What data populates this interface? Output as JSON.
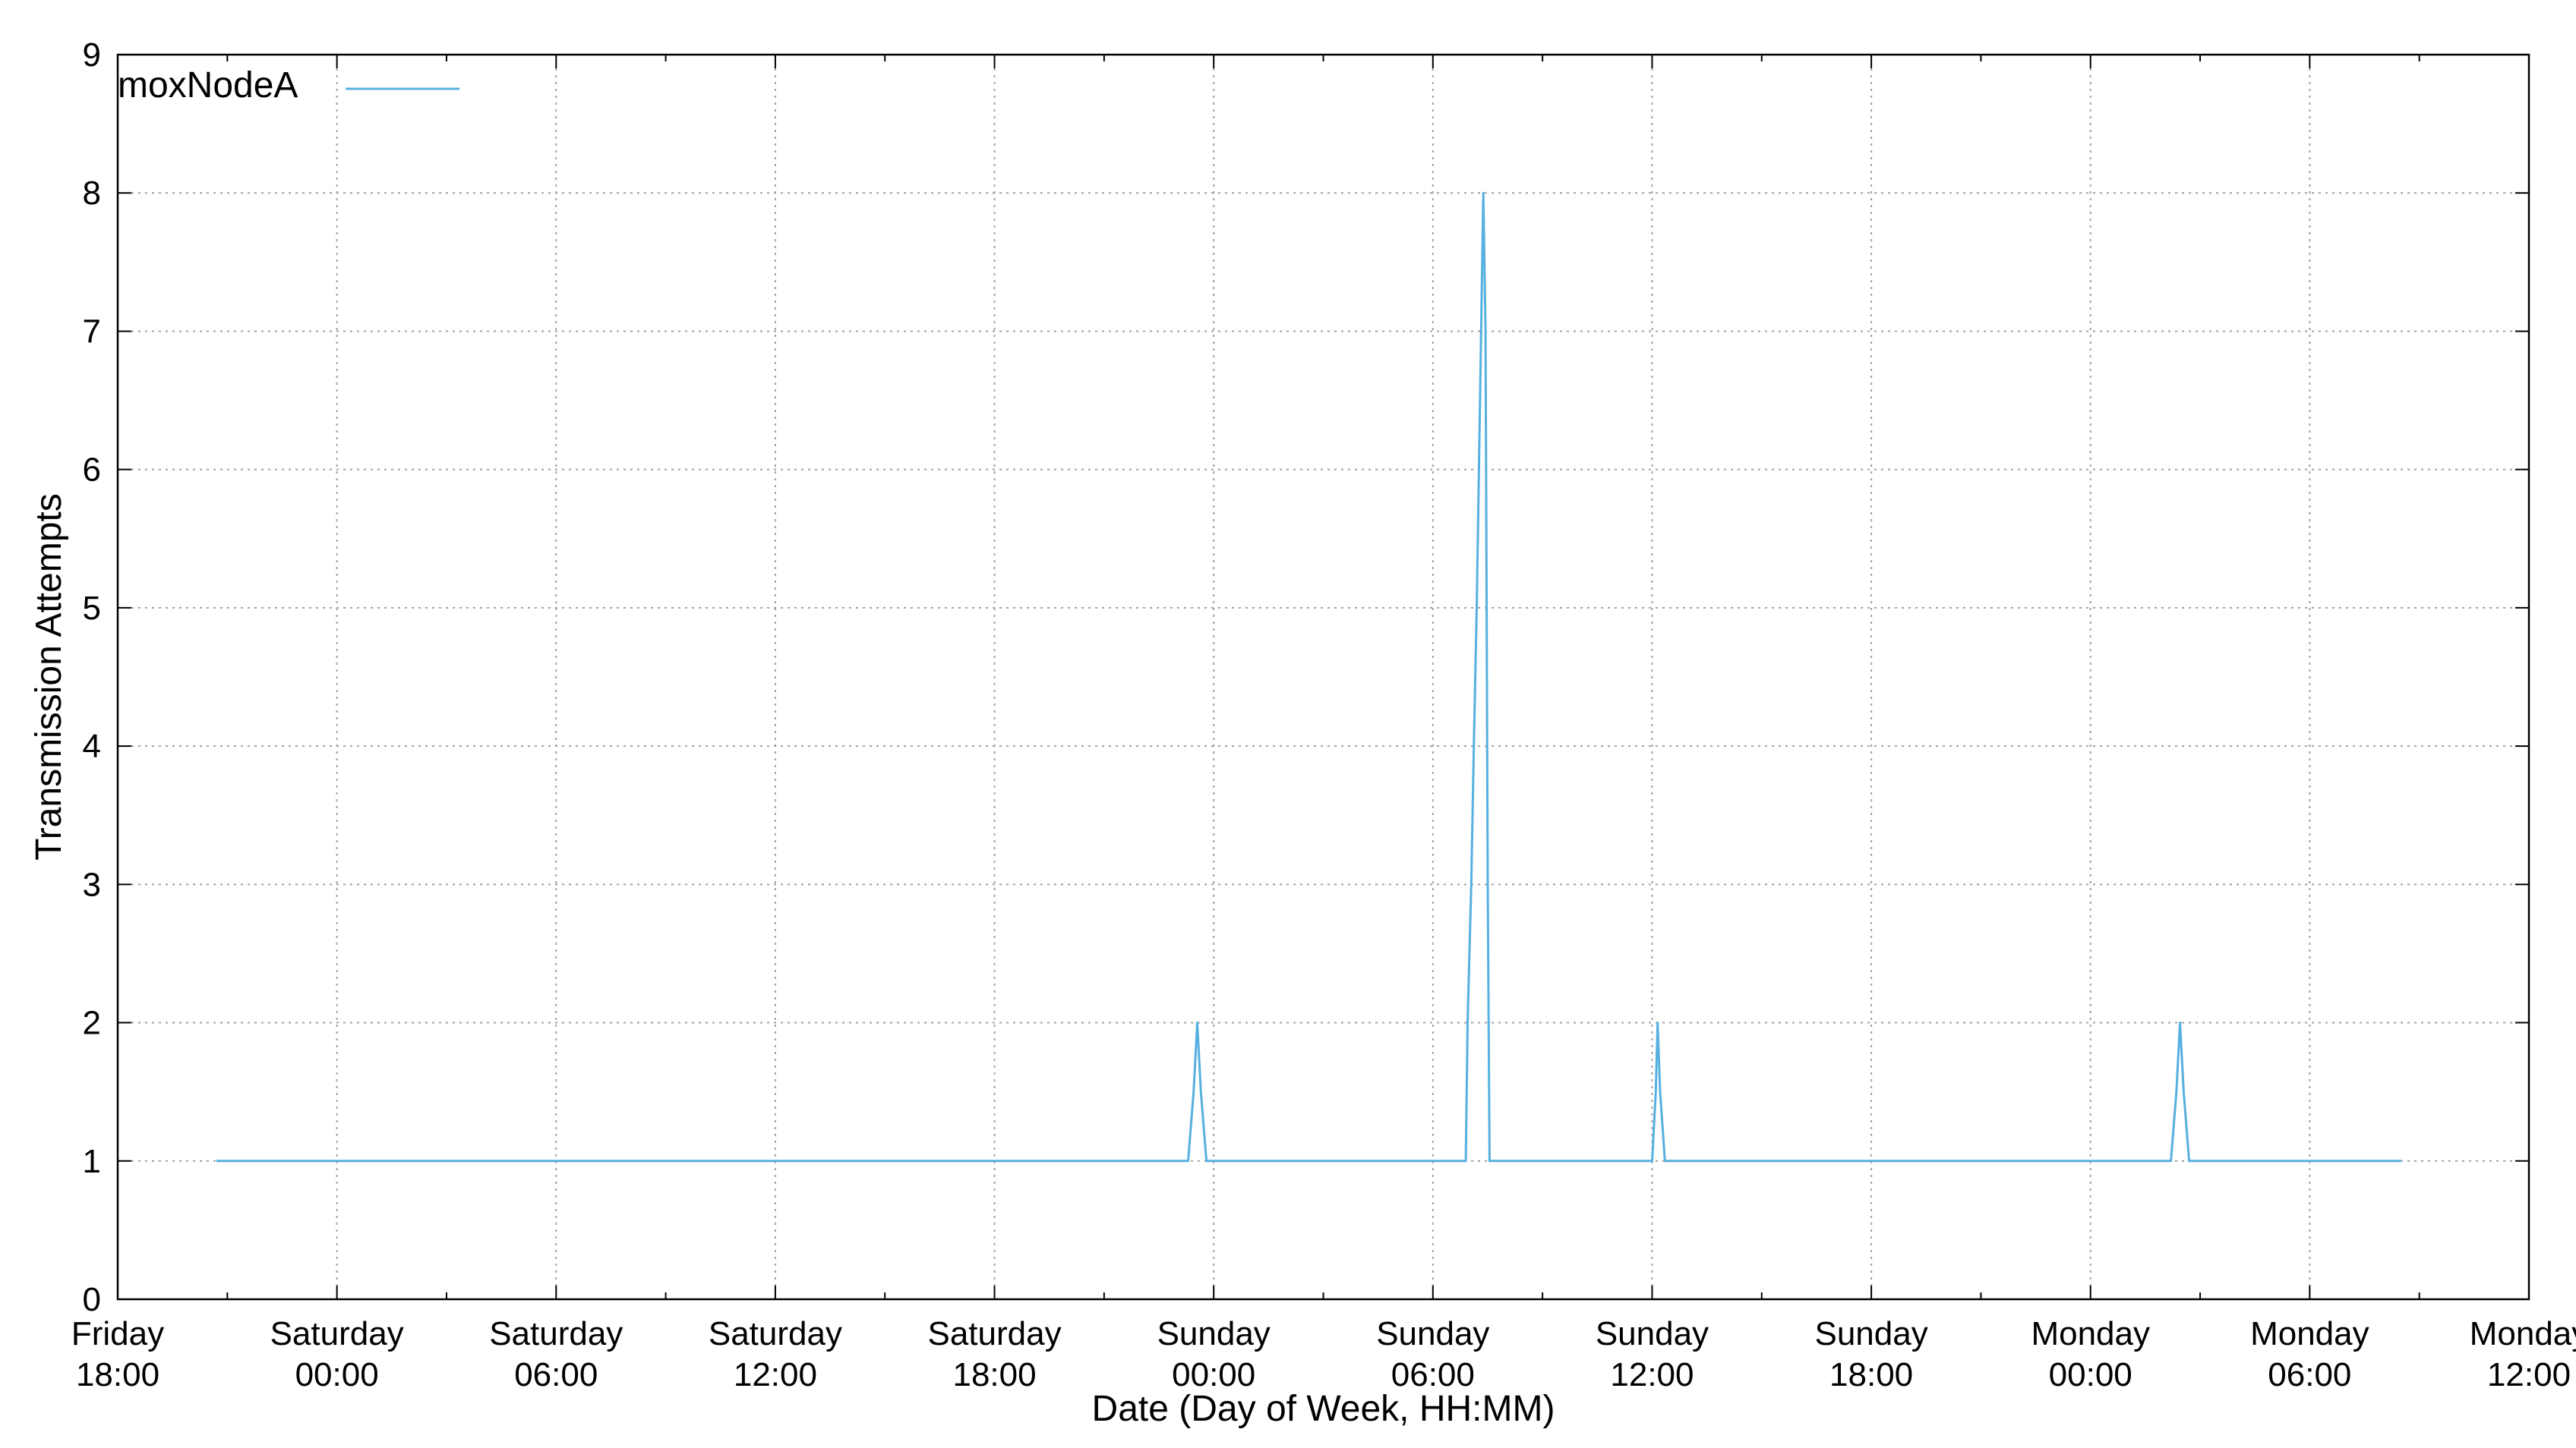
{
  "chart_data": {
    "type": "line",
    "ylabel": "Transmission Attempts",
    "xlabel": "Date (Day of Week, HH:MM)",
    "ylim": [
      0,
      9
    ],
    "yticks": [
      0,
      1,
      2,
      3,
      4,
      5,
      6,
      7,
      8,
      9
    ],
    "xlim_hours": [
      0,
      66
    ],
    "xticks": [
      {
        "hour": 0,
        "day": "Friday",
        "time": "18:00"
      },
      {
        "hour": 6,
        "day": "Saturday",
        "time": "00:00"
      },
      {
        "hour": 12,
        "day": "Saturday",
        "time": "06:00"
      },
      {
        "hour": 18,
        "day": "Saturday",
        "time": "12:00"
      },
      {
        "hour": 24,
        "day": "Saturday",
        "time": "18:00"
      },
      {
        "hour": 30,
        "day": "Sunday",
        "time": "00:00"
      },
      {
        "hour": 36,
        "day": "Sunday",
        "time": "06:00"
      },
      {
        "hour": 42,
        "day": "Sunday",
        "time": "12:00"
      },
      {
        "hour": 48,
        "day": "Sunday",
        "time": "18:00"
      },
      {
        "hour": 54,
        "day": "Monday",
        "time": "00:00"
      },
      {
        "hour": 60,
        "day": "Monday",
        "time": "06:00"
      },
      {
        "hour": 66,
        "day": "Monday",
        "time": "12:00"
      }
    ],
    "grid": true,
    "legend_position": "top-left",
    "series": [
      {
        "name": "moxNodeA",
        "color": "#56b0e0",
        "points": [
          [
            2.7,
            1
          ],
          [
            29.3,
            1
          ],
          [
            29.45,
            1.5
          ],
          [
            29.55,
            2
          ],
          [
            29.65,
            1.5
          ],
          [
            29.8,
            1
          ],
          [
            36.9,
            1
          ],
          [
            36.95,
            2
          ],
          [
            37.05,
            3
          ],
          [
            37.12,
            4
          ],
          [
            37.2,
            5
          ],
          [
            37.26,
            6
          ],
          [
            37.32,
            7
          ],
          [
            37.38,
            8
          ],
          [
            37.44,
            7
          ],
          [
            37.5,
            3
          ],
          [
            37.55,
            1
          ],
          [
            42.0,
            1
          ],
          [
            42.1,
            1.5
          ],
          [
            42.15,
            2
          ],
          [
            42.22,
            1.5
          ],
          [
            42.35,
            1
          ],
          [
            56.2,
            1
          ],
          [
            56.35,
            1.5
          ],
          [
            56.45,
            2
          ],
          [
            56.55,
            1.5
          ],
          [
            56.7,
            1
          ],
          [
            62.5,
            1
          ]
        ]
      }
    ]
  }
}
